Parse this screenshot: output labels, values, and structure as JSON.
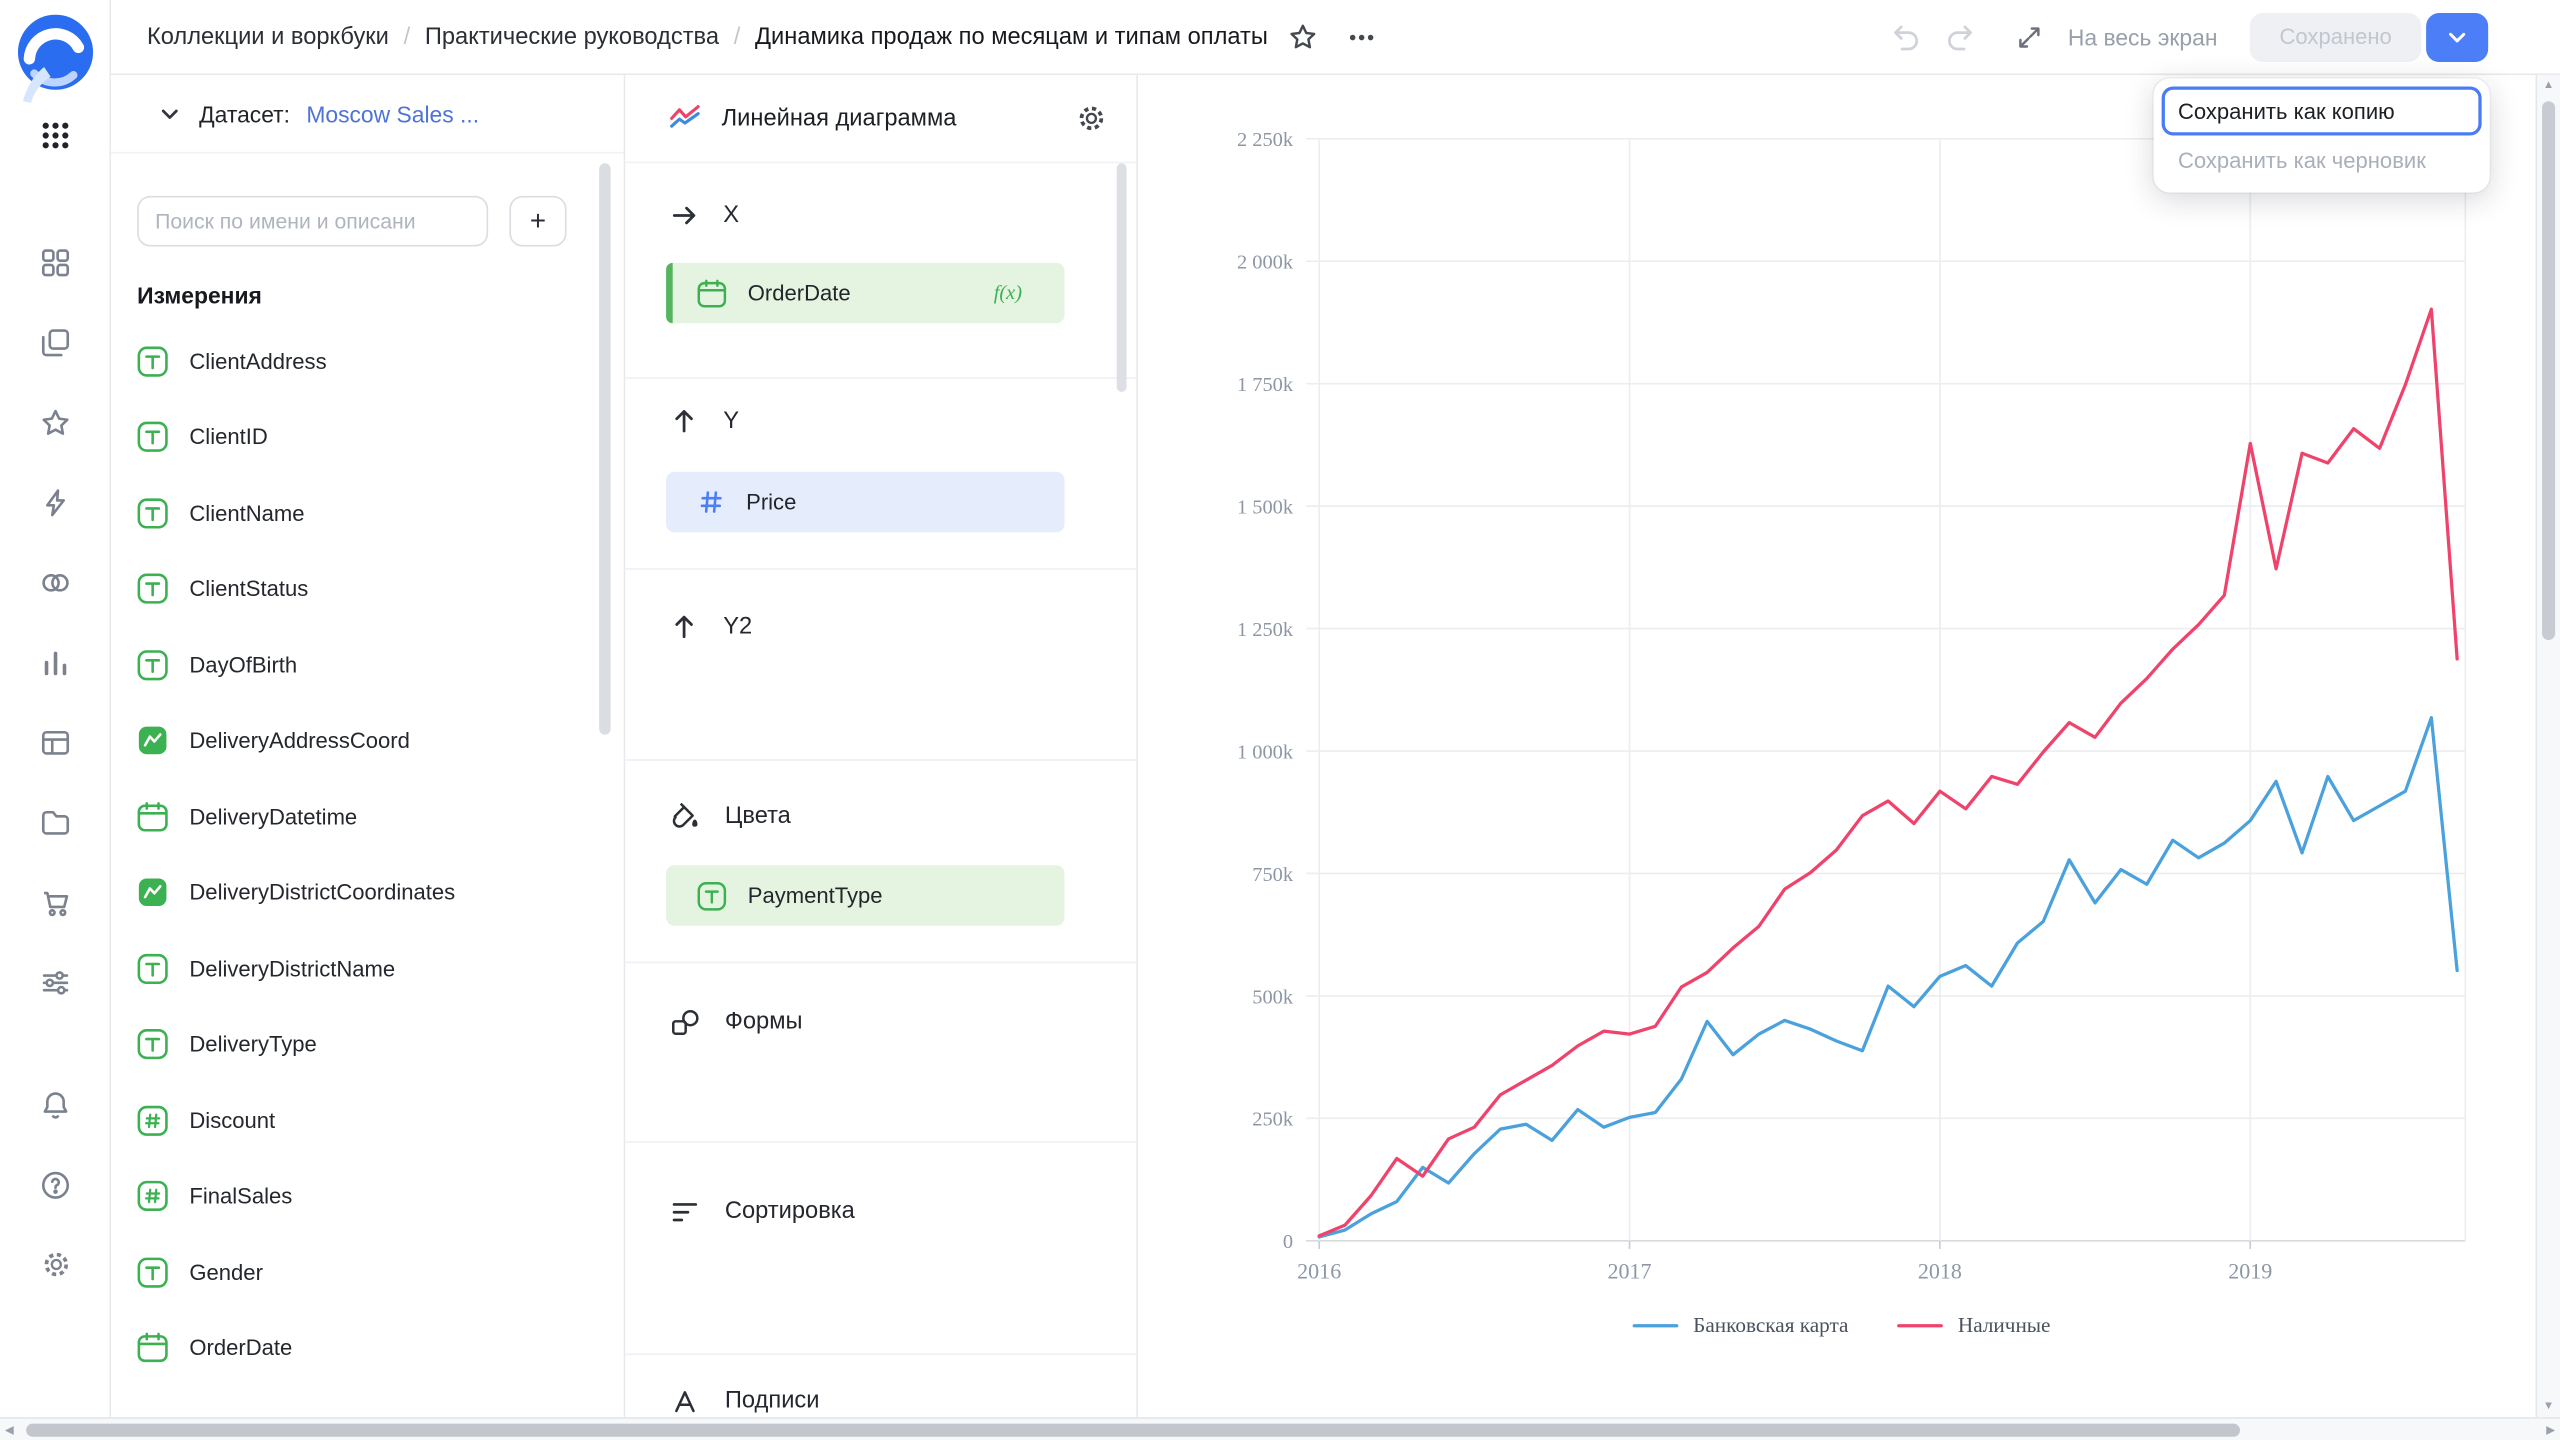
{
  "header": {
    "breadcrumbs": [
      "Коллекции и воркбуки",
      "Практические руководства",
      "Динамика продаж по месяцам и типам оплаты"
    ],
    "separator": "/",
    "fullscreen_label": "На весь экран",
    "saved_button_label": "Сохранено",
    "save_menu": {
      "items": [
        {
          "label": "Сохранить как копию",
          "state": "focused"
        },
        {
          "label": "Сохранить как черновик",
          "state": "disabled"
        }
      ]
    }
  },
  "dataset_panel": {
    "dataset_label": "Датасет:",
    "dataset_name": "Moscow Sales ...",
    "search_placeholder": "Поиск по имени и описани",
    "add_button_label": "+",
    "dimensions_title": "Измерения",
    "fields": [
      {
        "name": "ClientAddress",
        "type": "string"
      },
      {
        "name": "ClientID",
        "type": "string"
      },
      {
        "name": "ClientName",
        "type": "string"
      },
      {
        "name": "ClientStatus",
        "type": "string"
      },
      {
        "name": "DayOfBirth",
        "type": "string"
      },
      {
        "name": "DeliveryAddressCoord",
        "type": "geo"
      },
      {
        "name": "DeliveryDatetime",
        "type": "date"
      },
      {
        "name": "DeliveryDistrictCoordinates",
        "type": "geo"
      },
      {
        "name": "DeliveryDistrictName",
        "type": "string"
      },
      {
        "name": "DeliveryType",
        "type": "string"
      },
      {
        "name": "Discount",
        "type": "number"
      },
      {
        "name": "FinalSales",
        "type": "number"
      },
      {
        "name": "Gender",
        "type": "string"
      },
      {
        "name": "OrderDate",
        "type": "date"
      }
    ]
  },
  "chart_config": {
    "title": "Линейная диаграмма",
    "sections": {
      "x": {
        "label": "X",
        "field": "OrderDate",
        "badge": "f(x)"
      },
      "y": {
        "label": "Y",
        "field": "Price"
      },
      "y2": {
        "label": "Y2"
      },
      "colors": {
        "label": "Цвета",
        "field": "PaymentType"
      },
      "shapes": {
        "label": "Формы"
      },
      "sorting": {
        "label": "Сортировка"
      },
      "labels": {
        "label": "Подписи"
      }
    }
  },
  "chart_data": {
    "type": "line",
    "title": "",
    "xlabel": "",
    "ylabel": "",
    "y_unit": "k (thousands)",
    "ylim_k": [
      0,
      2250
    ],
    "ytick_step_k": 250,
    "ytick_labels": [
      "0",
      "250k",
      "500k",
      "750k",
      "1 000k",
      "1 250k",
      "1 500k",
      "1 750k",
      "2 000k",
      "2 250k"
    ],
    "xtick_labels": [
      "2016",
      "2017",
      "2018",
      "2019"
    ],
    "xtick_month_indices": [
      0,
      12,
      24,
      36
    ],
    "grid": true,
    "legend_position": "bottom",
    "x_months": [
      "2016-01",
      "2016-02",
      "2016-03",
      "2016-04",
      "2016-05",
      "2016-06",
      "2016-07",
      "2016-08",
      "2016-09",
      "2016-10",
      "2016-11",
      "2016-12",
      "2017-01",
      "2017-02",
      "2017-03",
      "2017-04",
      "2017-05",
      "2017-06",
      "2017-07",
      "2017-08",
      "2017-09",
      "2017-10",
      "2017-11",
      "2017-12",
      "2018-01",
      "2018-02",
      "2018-03",
      "2018-04",
      "2018-05",
      "2018-06",
      "2018-07",
      "2018-08",
      "2018-09",
      "2018-10",
      "2018-11",
      "2018-12",
      "2019-01",
      "2019-02",
      "2019-03",
      "2019-04",
      "2019-05",
      "2019-06",
      "2019-07",
      "2019-08",
      "2019-09"
    ],
    "series": [
      {
        "name": "Банковская карта",
        "color": "#4AA1DD",
        "values_k": [
          8,
          22,
          55,
          80,
          150,
          118,
          178,
          228,
          238,
          205,
          268,
          232,
          252,
          262,
          330,
          448,
          380,
          422,
          450,
          432,
          408,
          388,
          520,
          478,
          540,
          562,
          520,
          608,
          652,
          778,
          690,
          758,
          728,
          818,
          782,
          812,
          858,
          938,
          792,
          948,
          858,
          888,
          918,
          1068,
          552
        ]
      },
      {
        "name": "Наличные",
        "color": "#F0436B",
        "values_k": [
          10,
          32,
          92,
          168,
          132,
          208,
          232,
          298,
          328,
          358,
          398,
          428,
          422,
          438,
          518,
          548,
          598,
          642,
          718,
          752,
          798,
          868,
          898,
          852,
          918,
          882,
          948,
          932,
          998,
          1058,
          1028,
          1098,
          1148,
          1208,
          1258,
          1318,
          1628,
          1372,
          1608,
          1588,
          1658,
          1618,
          1748,
          1902,
          1188
        ]
      }
    ]
  },
  "colors": {
    "accent_blue": "#4C7EF8",
    "link_blue": "#4D73D8",
    "field_green": "#3CB152",
    "pill_green_bg": "#E4F4E0",
    "pill_blue_bg": "#E5ECFC"
  }
}
